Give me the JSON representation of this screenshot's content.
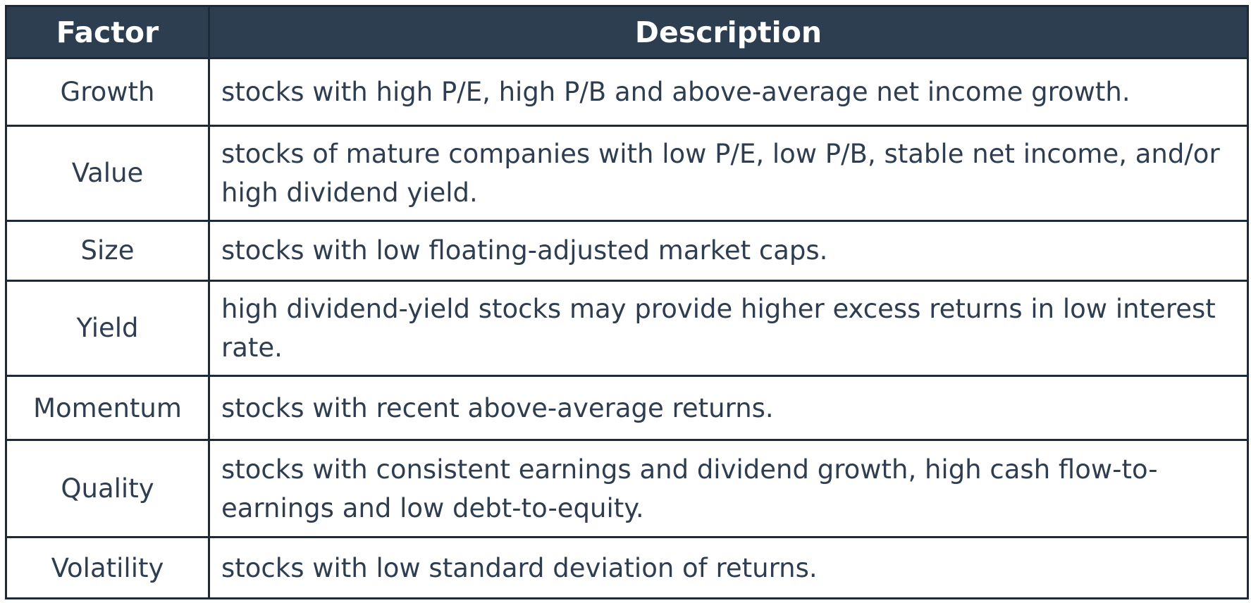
{
  "table": {
    "headers": {
      "factor": "Factor",
      "description": "Description"
    },
    "rows": [
      {
        "factor": "Growth",
        "description": "stocks with high P/E, high P/B and above-average net income growth."
      },
      {
        "factor": "Value",
        "description": "stocks of mature companies with low P/E, low P/B, stable net income, and/or high dividend yield."
      },
      {
        "factor": "Size",
        "description": "stocks with low floating-adjusted market caps."
      },
      {
        "factor": "Yield",
        "description": "high dividend-yield stocks may provide higher excess returns in low interest rate."
      },
      {
        "factor": "Momentum",
        "description": "stocks with recent above-average returns."
      },
      {
        "factor": "Quality",
        "description": "stocks with consistent earnings and dividend growth, high cash flow-to-earnings and low debt-to-equity."
      },
      {
        "factor": "Volatility",
        "description": "stocks with low standard deviation of returns."
      }
    ],
    "colors": {
      "header_background": "#2c3e50",
      "header_text": "#ffffff",
      "body_text": "#2e3e50",
      "border": "#1f2a38"
    }
  }
}
